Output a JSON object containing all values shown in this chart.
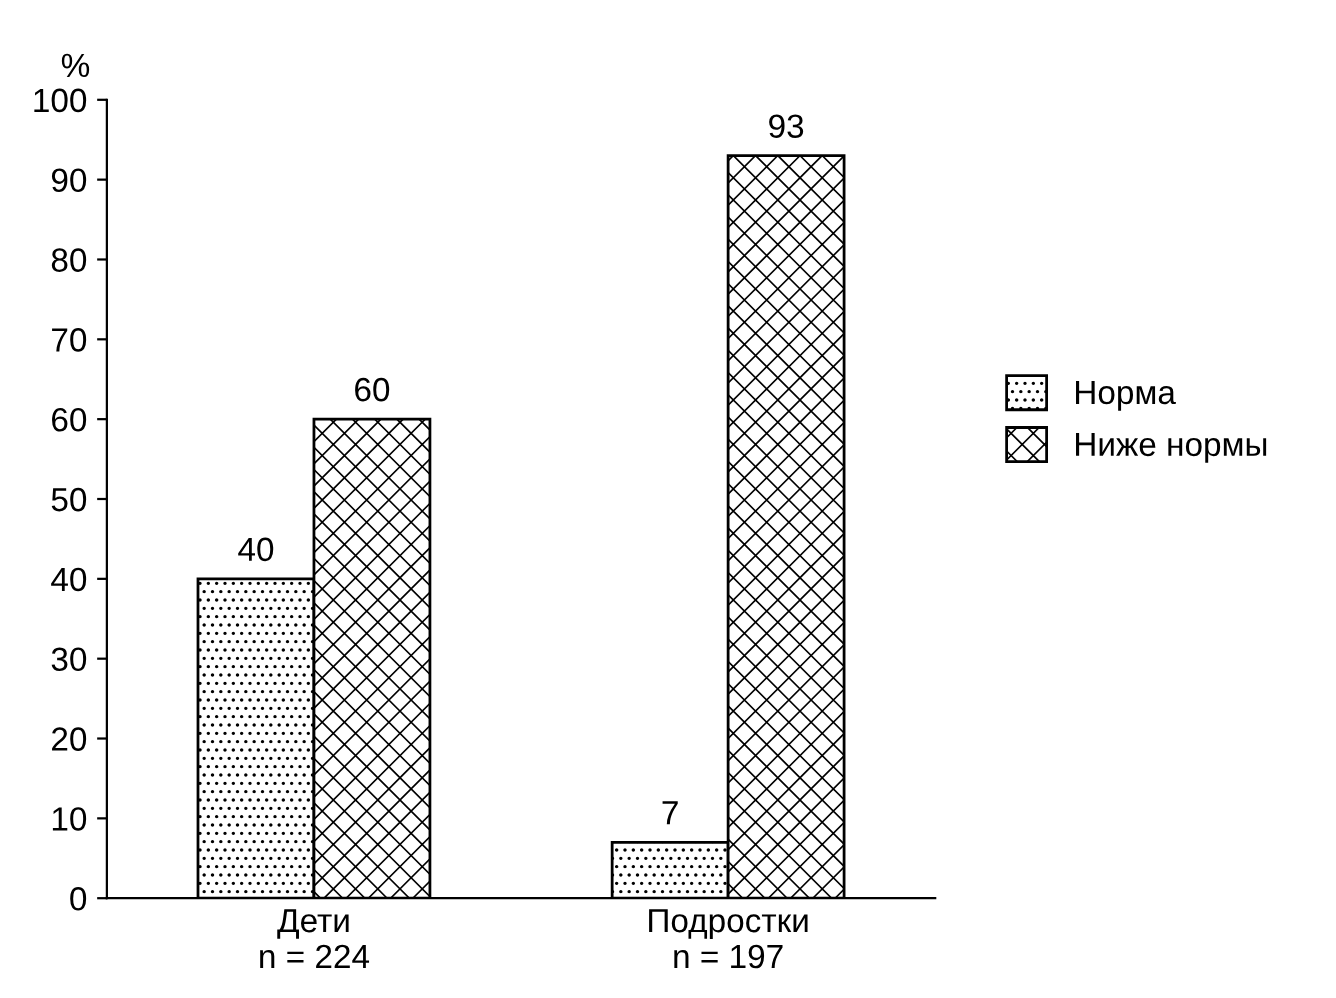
{
  "chart_data": {
    "type": "bar",
    "ylabel": "%",
    "categories": [
      "Дети\nn = 224",
      "Подростки\nn = 197"
    ],
    "series": [
      {
        "name": "Норма",
        "color": "#000000",
        "values": [
          40,
          7
        ]
      },
      {
        "name": "Ниже нормы",
        "color": "#000000",
        "values": [
          60,
          93
        ]
      }
    ],
    "ylim": [
      0,
      100
    ],
    "yticks": [
      0,
      10,
      20,
      30,
      40,
      50,
      60,
      70,
      80,
      90,
      100
    ],
    "data_labels": true,
    "legend": "right",
    "grid": false
  }
}
